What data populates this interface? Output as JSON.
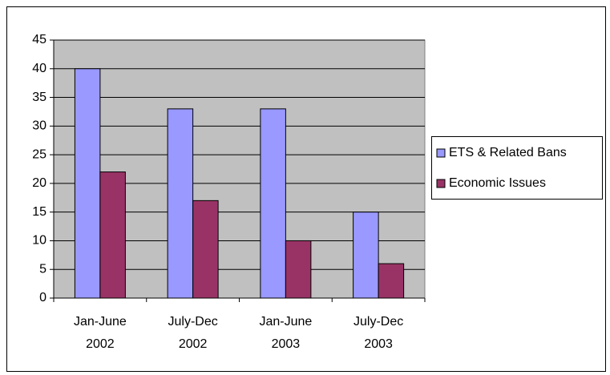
{
  "chart_data": {
    "type": "bar",
    "categories": [
      "Jan-June 2002",
      "July-Dec 2002",
      "Jan-June 2003",
      "July-Dec 2003"
    ],
    "series": [
      {
        "name": "ETS & Related Bans",
        "color": "#9999ff",
        "values": [
          40,
          33,
          33,
          15
        ]
      },
      {
        "name": "Economic Issues",
        "color": "#993366",
        "values": [
          22,
          17,
          10,
          6
        ]
      }
    ],
    "ylim": [
      0,
      45
    ],
    "yticks": [
      0,
      5,
      10,
      15,
      20,
      25,
      30,
      35,
      40,
      45
    ],
    "grid": true,
    "legend": "right"
  }
}
